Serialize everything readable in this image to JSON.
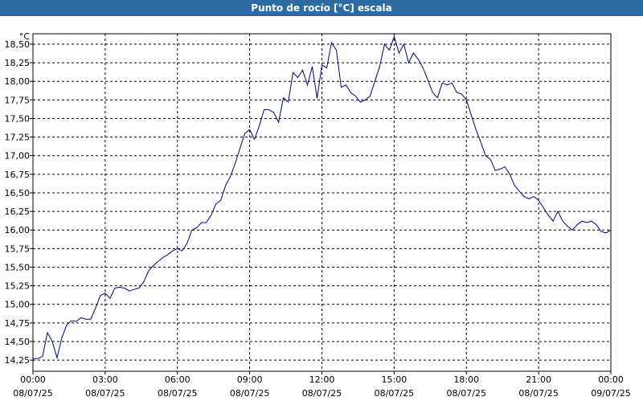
{
  "window": {
    "title": "Punto de rocío [°C] escala"
  },
  "colors": {
    "title_bar": "#2b6aa2",
    "line": "#00008b",
    "grid": "#000000",
    "background": "#ffffff"
  },
  "chart_data": {
    "type": "line",
    "title": "Punto de rocío [°C] escala",
    "unit_label": "°C",
    "xlabel": "",
    "ylabel": "",
    "grid": true,
    "grid_style": "dashed",
    "ylim": [
      14.1,
      18.64
    ],
    "y_ticks": [
      14.25,
      14.5,
      14.75,
      15.0,
      15.25,
      15.5,
      15.75,
      16.0,
      16.25,
      16.5,
      16.75,
      17.0,
      17.25,
      17.5,
      17.75,
      18.0,
      18.25,
      18.5
    ],
    "y_tick_labels": [
      "14,25",
      "14,50",
      "14,75",
      "15,00",
      "15,25",
      "15,50",
      "15,75",
      "16,00",
      "16,25",
      "16,50",
      "16,75",
      "17,00",
      "17,25",
      "17,50",
      "17,75",
      "18,00",
      "18,25",
      "18,50"
    ],
    "x_ticks_hours": [
      0,
      3,
      6,
      9,
      12,
      15,
      18,
      21,
      24
    ],
    "x_tick_labels": [
      [
        "00:00",
        "08/07/25"
      ],
      [
        "03:00",
        "08/07/25"
      ],
      [
        "06:00",
        "08/07/25"
      ],
      [
        "09:00",
        "08/07/25"
      ],
      [
        "12:00",
        "08/07/25"
      ],
      [
        "15:00",
        "08/07/25"
      ],
      [
        "18:00",
        "08/07/25"
      ],
      [
        "21:00",
        "08/07/25"
      ],
      [
        "00:00",
        "09/07/25"
      ]
    ],
    "xlim_hours": [
      0,
      24
    ],
    "series": [
      {
        "x": [
          0.0,
          0.2,
          0.4,
          0.6,
          0.8,
          1.0,
          1.2,
          1.4,
          1.6,
          1.8,
          2.0,
          2.2,
          2.4,
          2.6,
          2.8,
          3.0,
          3.2,
          3.4,
          3.6,
          3.8,
          4.0,
          4.2,
          4.4,
          4.6,
          4.8,
          5.0,
          5.2,
          5.4,
          5.6,
          5.8,
          6.0,
          6.2,
          6.4,
          6.6,
          6.8,
          7.0,
          7.2,
          7.4,
          7.6,
          7.8,
          8.0,
          8.2,
          8.4,
          8.6,
          8.8,
          9.0,
          9.2,
          9.4,
          9.6,
          9.8,
          10.0,
          10.2,
          10.4,
          10.6,
          10.8,
          11.0,
          11.2,
          11.4,
          11.6,
          11.8,
          12.0,
          12.2,
          12.4,
          12.6,
          12.8,
          13.0,
          13.2,
          13.4,
          13.6,
          13.8,
          14.0,
          14.2,
          14.4,
          14.6,
          14.8,
          15.0,
          15.2,
          15.4,
          15.6,
          15.8,
          16.0,
          16.2,
          16.4,
          16.6,
          16.8,
          17.0,
          17.2,
          17.4,
          17.6,
          17.8,
          18.0,
          18.2,
          18.4,
          18.6,
          18.8,
          19.0,
          19.2,
          19.4,
          19.6,
          19.8,
          20.0,
          20.2,
          20.4,
          20.6,
          20.8,
          21.0,
          21.2,
          21.4,
          21.6,
          21.8,
          22.0,
          22.2,
          22.4,
          22.6,
          22.8,
          23.0,
          23.2,
          23.4,
          23.6,
          23.8,
          24.0
        ],
        "values": [
          14.27,
          14.27,
          14.3,
          14.62,
          14.5,
          14.28,
          14.55,
          14.72,
          14.78,
          14.77,
          14.82,
          14.8,
          14.8,
          14.95,
          15.12,
          15.15,
          15.08,
          15.22,
          15.23,
          15.22,
          15.18,
          15.2,
          15.22,
          15.3,
          15.45,
          15.52,
          15.58,
          15.63,
          15.67,
          15.72,
          15.75,
          15.72,
          15.82,
          16.0,
          16.03,
          16.1,
          16.1,
          16.2,
          16.35,
          16.4,
          16.6,
          16.72,
          16.9,
          17.1,
          17.3,
          17.35,
          17.22,
          17.4,
          17.62,
          17.62,
          17.58,
          17.45,
          17.78,
          17.72,
          18.12,
          18.05,
          18.15,
          17.95,
          18.2,
          17.77,
          18.22,
          18.18,
          18.52,
          18.42,
          17.92,
          17.95,
          17.85,
          17.8,
          17.72,
          17.75,
          17.8,
          18.0,
          18.2,
          18.5,
          18.42,
          18.6,
          18.38,
          18.5,
          18.25,
          18.38,
          18.3,
          18.18,
          18.02,
          17.85,
          17.78,
          17.98,
          17.95,
          17.98,
          17.85,
          17.83,
          17.75,
          17.55,
          17.35,
          17.18,
          17.0,
          16.95,
          16.8,
          16.82,
          16.85,
          16.75,
          16.6,
          16.52,
          16.45,
          16.42,
          16.45,
          16.4,
          16.3,
          16.2,
          16.12,
          16.25,
          16.12,
          16.05,
          16.0,
          16.07,
          16.12,
          16.1,
          16.12,
          16.07,
          15.98,
          15.96,
          16.0
        ]
      }
    ]
  }
}
